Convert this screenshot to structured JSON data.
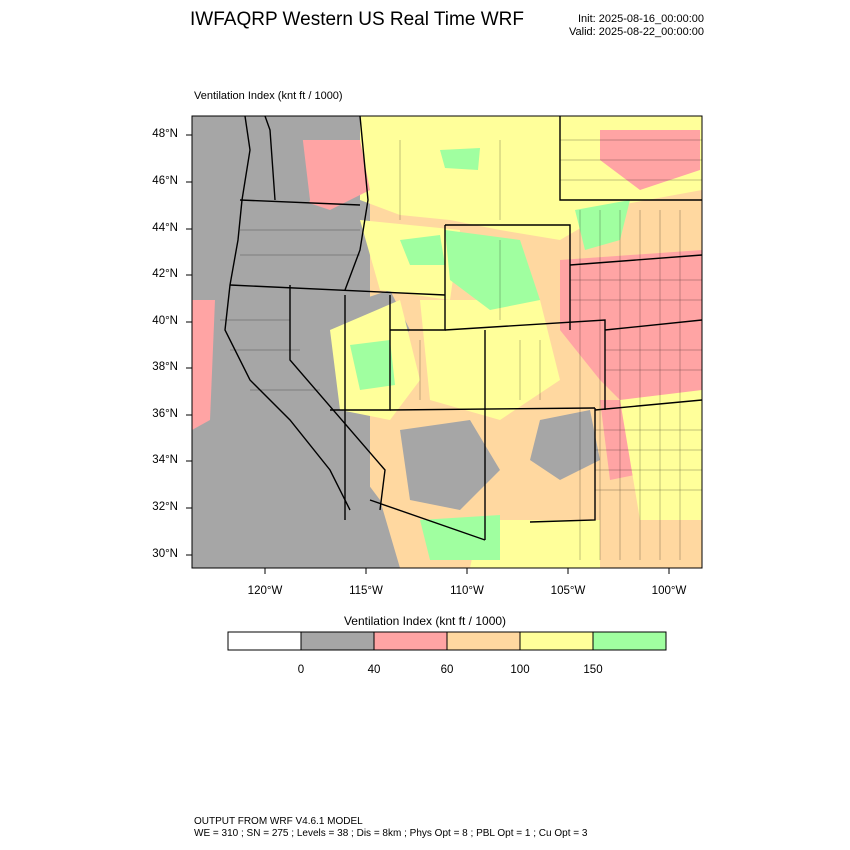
{
  "header": {
    "title": "IWFAQRP Western US Real Time WRF",
    "init": "Init: 2025-08-16_00:00:00",
    "valid": "Valid: 2025-08-22_00:00:00"
  },
  "plot": {
    "label": "Ventilation Index   (knt ft / 1000)",
    "lat_labels": [
      "48°N",
      "46°N",
      "44°N",
      "42°N",
      "40°N",
      "38°N",
      "36°N",
      "34°N",
      "32°N",
      "30°N"
    ],
    "lon_labels": [
      "120°W",
      "115°W",
      "110°W",
      "105°W",
      "100°W"
    ]
  },
  "colorbar": {
    "title": "Ventilation Index   (knt ft / 1000)",
    "tick_labels": [
      "0",
      "40",
      "60",
      "100",
      "150"
    ],
    "colors": [
      "#ffffff",
      "#a6a6a6",
      "#ffa4a4",
      "#ffd8a0",
      "#ffff9a",
      "#a0ffa0"
    ]
  },
  "footer": {
    "line1": "OUTPUT FROM WRF V4.6.1 MODEL",
    "line2": "WE = 310 ; SN = 275 ; Levels = 38 ; Dis = 8km ; Phys Opt = 8 ; PBL Opt = 1 ; Cu Opt = 3"
  }
}
